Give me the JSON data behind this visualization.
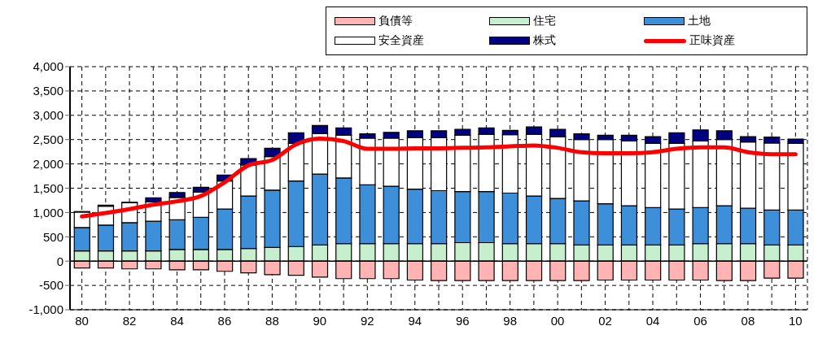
{
  "chart_data": {
    "type": "bar",
    "stacked": true,
    "categories": [
      "80",
      null,
      "82",
      null,
      "84",
      null,
      "86",
      null,
      "88",
      null,
      "90",
      null,
      "92",
      null,
      "94",
      null,
      "96",
      null,
      "98",
      null,
      "00",
      null,
      "02",
      null,
      "04",
      null,
      "06",
      null,
      "08",
      null,
      "10"
    ],
    "series": [
      {
        "name": "負債等",
        "color": "#ffb3b3",
        "values": [
          -140,
          -140,
          -160,
          -160,
          -180,
          -180,
          -210,
          -240,
          -280,
          -290,
          -330,
          -360,
          -360,
          -360,
          -390,
          -400,
          -400,
          -400,
          -400,
          -400,
          -400,
          -400,
          -390,
          -390,
          -390,
          -390,
          -390,
          -400,
          -400,
          -350,
          -350
        ]
      },
      {
        "name": "住宅",
        "color": "#c6efce",
        "values": [
          210,
          210,
          210,
          210,
          240,
          240,
          240,
          260,
          280,
          300,
          330,
          360,
          360,
          360,
          360,
          360,
          380,
          380,
          360,
          360,
          360,
          330,
          330,
          330,
          330,
          330,
          360,
          360,
          360,
          330,
          330
        ]
      },
      {
        "name": "土地",
        "color": "#3d8fd9",
        "values": [
          480,
          530,
          580,
          610,
          610,
          660,
          830,
          1080,
          1180,
          1350,
          1460,
          1350,
          1210,
          1180,
          1120,
          1090,
          1050,
          1050,
          1040,
          980,
          930,
          910,
          850,
          810,
          770,
          740,
          740,
          780,
          730,
          720,
          720
        ]
      },
      {
        "name": "安全資産",
        "color": "#ffffff",
        "values": [
          320,
          390,
          410,
          400,
          460,
          520,
          580,
          640,
          690,
          770,
          830,
          880,
          960,
          990,
          1060,
          1090,
          1160,
          1180,
          1200,
          1270,
          1270,
          1260,
          1320,
          1330,
          1320,
          1350,
          1370,
          1360,
          1360,
          1380,
          1370
        ]
      },
      {
        "name": "株式",
        "color": "#000080",
        "values": [
          10,
          20,
          10,
          80,
          100,
          100,
          120,
          130,
          170,
          220,
          170,
          150,
          90,
          120,
          140,
          140,
          120,
          130,
          90,
          150,
          150,
          120,
          90,
          120,
          140,
          220,
          230,
          180,
          110,
          120,
          90
        ]
      },
      {
        "name": "正味資産",
        "type": "line",
        "color": "#ff0000",
        "values": [
          920,
          990,
          1070,
          1160,
          1230,
          1340,
          1620,
          1970,
          2080,
          2400,
          2520,
          2470,
          2310,
          2310,
          2320,
          2320,
          2330,
          2340,
          2360,
          2380,
          2330,
          2240,
          2220,
          2220,
          2240,
          2310,
          2340,
          2340,
          2240,
          2200,
          2200
        ]
      }
    ],
    "ylim": [
      -1000,
      4000
    ],
    "yticks": [
      {
        "value": -1000,
        "label": "-1,000"
      },
      {
        "value": -500,
        "label": "-500"
      },
      0,
      {
        "value": 500,
        "label": "500"
      },
      {
        "value": 1000,
        "label": "1,000"
      },
      {
        "value": 1500,
        "label": "1,500"
      },
      {
        "value": 2000,
        "label": "2,000"
      },
      {
        "value": 2500,
        "label": "2,500"
      },
      {
        "value": 3000,
        "label": "3,000"
      },
      {
        "value": 3500,
        "label": "3,500"
      },
      {
        "value": 4000,
        "label": "4,000"
      }
    ],
    "grid": true,
    "legend": "top right",
    "line_style": "solid",
    "marker": "none"
  }
}
